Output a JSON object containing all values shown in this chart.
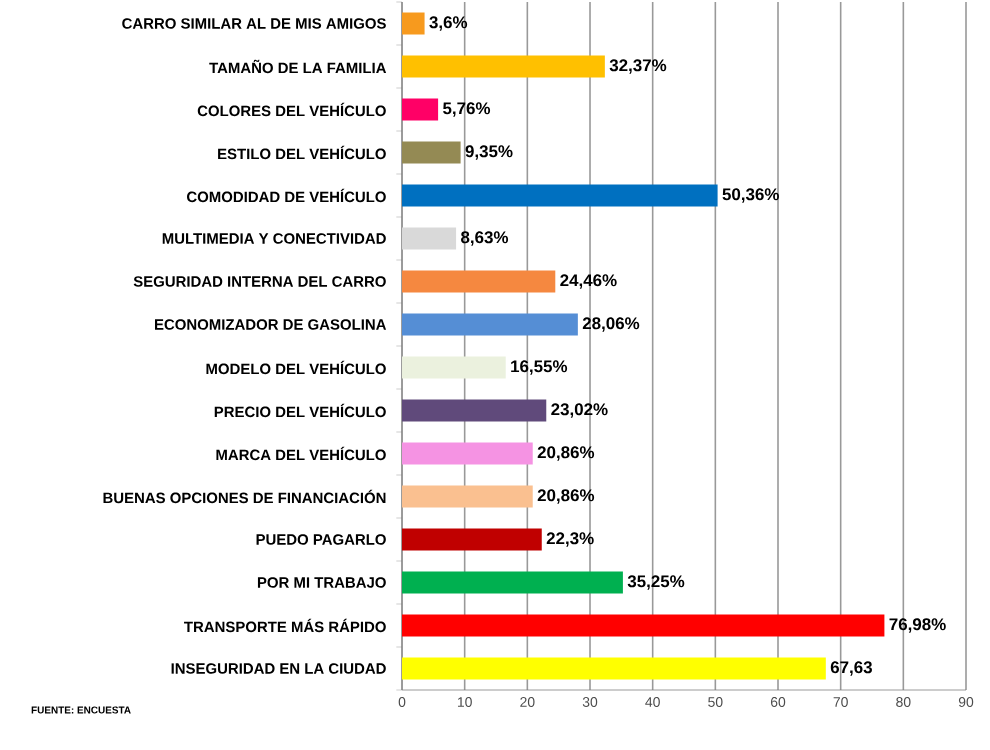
{
  "chart_data": {
    "type": "bar",
    "orientation": "horizontal",
    "categories": [
      "CARRO SIMILAR AL DE MIS AMIGOS",
      "TAMAÑO DE LA FAMILIA",
      "COLORES DEL VEHÍCULO",
      "ESTILO DEL VEHÍCULO",
      "COMODIDAD DE VEHÍCULO",
      "MULTIMEDIA Y CONECTIVIDAD",
      "SEGURIDAD INTERNA DEL CARRO",
      "ECONOMIZADOR DE GASOLINA",
      "MODELO DEL VEHÍCULO",
      "PRECIO DEL VEHÍCULO",
      "MARCA DEL VEHÍCULO",
      "BUENAS OPCIONES DE FINANCIACIÓN",
      "PUEDO PAGARLO",
      "POR MI TRABAJO",
      "TRANSPORTE MÁS RÁPIDO",
      "INSEGURIDAD EN LA CIUDAD"
    ],
    "values": [
      3.6,
      32.37,
      5.76,
      9.35,
      50.36,
      8.63,
      24.46,
      28.06,
      16.55,
      23.02,
      20.86,
      20.86,
      22.3,
      35.25,
      76.98,
      67.63
    ],
    "value_labels": [
      "3,6%",
      "32,37%",
      "5,76%",
      "9,35%",
      "50,36%",
      "8,63%",
      "24,46%",
      "28,06%",
      "16,55%",
      "23,02%",
      "20,86%",
      "20,86%",
      "22,3%",
      "35,25%",
      "76,98%",
      "67,63"
    ],
    "colors": [
      "#f79a1e",
      "#ffc000",
      "#ff0066",
      "#948a54",
      "#0070c0",
      "#d9d9d9",
      "#f58840",
      "#558ed5",
      "#ebf1de",
      "#604a7b",
      "#f593e3",
      "#fac090",
      "#c00000",
      "#00b050",
      "#ff0000",
      "#ffff00"
    ],
    "xlim": [
      0,
      90
    ],
    "xticks": [
      0,
      10,
      20,
      30,
      40,
      50,
      60,
      70,
      80,
      90
    ],
    "grid": "x",
    "annotations": [
      "FUENTE: ENCUESTA"
    ]
  }
}
